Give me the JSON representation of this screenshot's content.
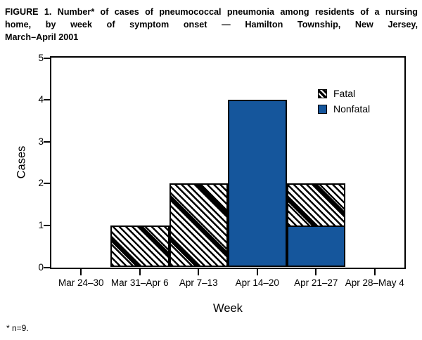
{
  "figure": {
    "title_lines": [
      "FIGURE 1. Number* of cases of pneumococcal pneumonia among residents of a nursing",
      "home, by week of symptom onset — Hamilton Township, New Jersey,",
      "March–April 2001"
    ],
    "footnote": "* n=9."
  },
  "chart_data": {
    "type": "bar",
    "stacked": true,
    "xlabel": "Week",
    "ylabel": "Cases",
    "ylim": [
      0,
      5
    ],
    "yticks": [
      0,
      1,
      2,
      3,
      4,
      5
    ],
    "grid": false,
    "categories": [
      "Mar 24–30",
      "Mar 31–Apr 6",
      "Apr 7–13",
      "Apr 14–20",
      "Apr 21–27",
      "Apr 28–May 4"
    ],
    "series": [
      {
        "name": "Nonfatal",
        "style": "solid",
        "color": "#15569C",
        "values": [
          0,
          0,
          0,
          4,
          1,
          0
        ]
      },
      {
        "name": "Fatal",
        "style": "hatch",
        "hatch_fg": "#000000",
        "hatch_bg": "#ffffff",
        "values": [
          0,
          1,
          2,
          0,
          1,
          0
        ]
      }
    ],
    "legend": {
      "position": "top-right",
      "entries": [
        {
          "label": "Fatal",
          "swatch": "hatch"
        },
        {
          "label": "Nonfatal",
          "swatch": "solid"
        }
      ]
    },
    "colors": {
      "axis_black": "#000000",
      "bar_blue": "#15569C"
    }
  }
}
